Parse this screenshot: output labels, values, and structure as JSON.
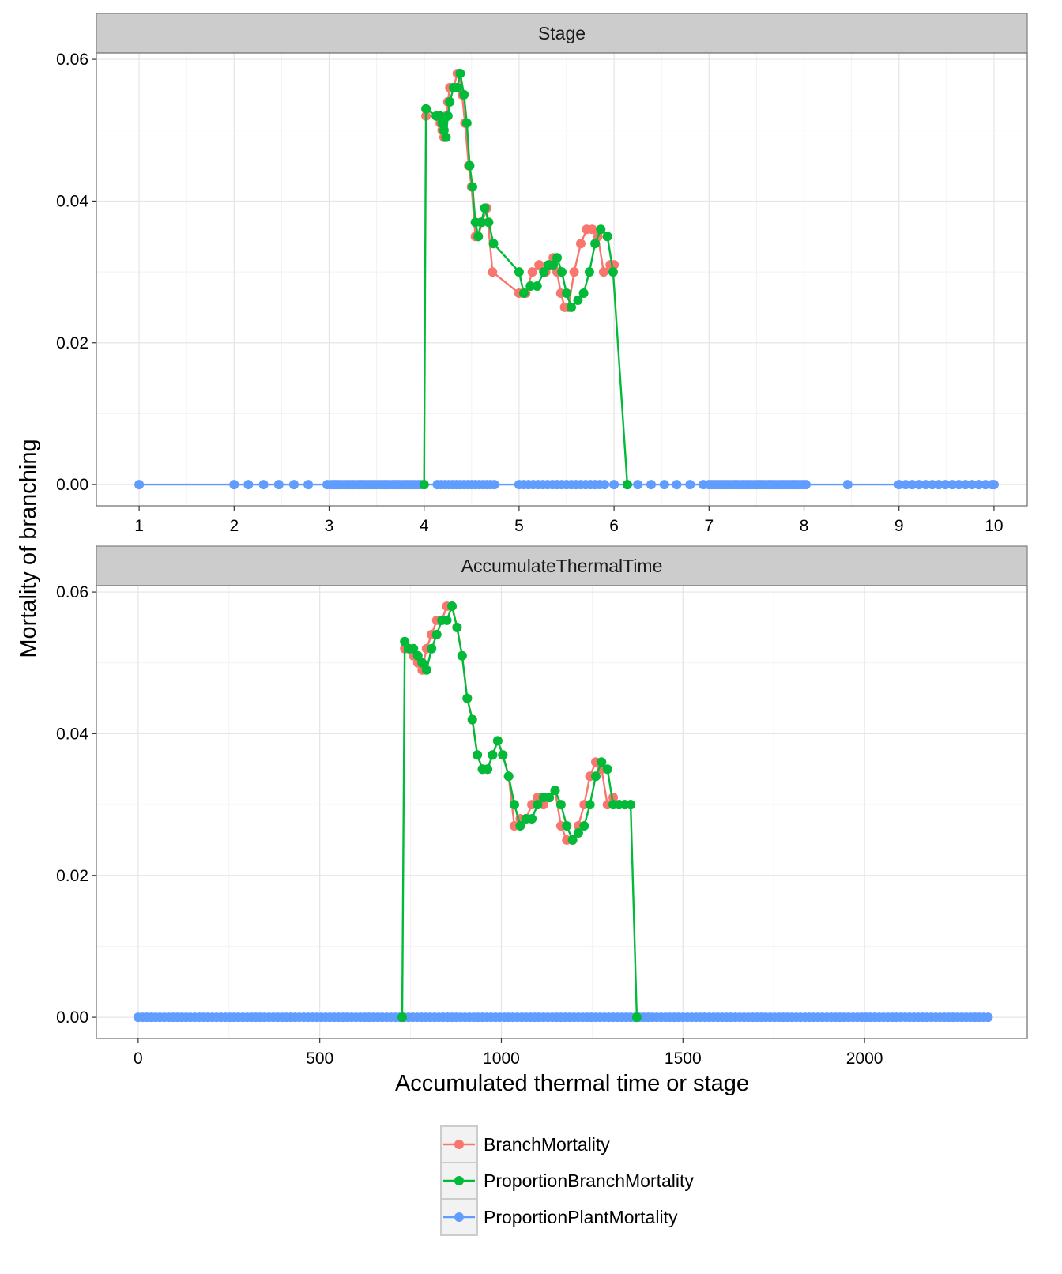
{
  "chart_data": {
    "type": "line",
    "ylabel": "Mortality of branching",
    "xlabel": "Accumulated thermal time or stage",
    "legend": {
      "placement": "bottom",
      "entries": [
        "BranchMortality",
        "ProportionBranchMortality",
        "ProportionPlantMortality"
      ]
    },
    "colors": {
      "BranchMortality": "#F8766D",
      "ProportionBranchMortality": "#00BA38",
      "ProportionPlantMortality": "#619CFF"
    },
    "panels": [
      {
        "strip": "Stage",
        "xlim": [
          0.55,
          10.35
        ],
        "ylim": [
          -0.003,
          0.0609
        ],
        "xticks": [
          1,
          2,
          3,
          4,
          5,
          6,
          7,
          8,
          9,
          10
        ],
        "yticks": [
          0.0,
          0.02,
          0.04,
          0.06
        ],
        "ytick_labels": [
          "0.00",
          "0.02",
          "0.04",
          "0.06"
        ],
        "series": [
          {
            "name": "BranchMortality",
            "x": [
              4.02,
              4.13,
              4.17,
              4.19,
              4.21,
              4.23,
              4.25,
              4.27,
              4.31,
              4.35,
              4.37,
              4.4,
              4.43,
              4.47,
              4.5,
              4.54,
              4.57,
              4.61,
              4.66,
              4.72,
              5.0,
              5.07,
              5.14,
              5.21,
              5.28,
              5.33,
              5.36,
              5.4,
              5.44,
              5.48,
              5.52,
              5.58,
              5.65,
              5.71,
              5.77,
              5.83,
              5.89,
              5.96,
              6.0
            ],
            "y": [
              0.052,
              0.052,
              0.051,
              0.05,
              0.049,
              0.052,
              0.054,
              0.056,
              0.056,
              0.058,
              0.058,
              0.055,
              0.051,
              0.045,
              0.042,
              0.035,
              0.035,
              0.037,
              0.039,
              0.03,
              0.027,
              0.027,
              0.03,
              0.031,
              0.03,
              0.031,
              0.032,
              0.03,
              0.027,
              0.025,
              0.025,
              0.03,
              0.034,
              0.036,
              0.036,
              0.035,
              0.03,
              0.031,
              0.031
            ]
          },
          {
            "name": "ProportionBranchMortality",
            "x": [
              4.0,
              4.02,
              4.13,
              4.17,
              4.19,
              4.21,
              4.23,
              4.25,
              4.27,
              4.31,
              4.35,
              4.38,
              4.42,
              4.45,
              4.48,
              4.51,
              4.54,
              4.57,
              4.6,
              4.64,
              4.68,
              4.73,
              5.0,
              5.05,
              5.12,
              5.19,
              5.26,
              5.31,
              5.36,
              5.4,
              5.45,
              5.5,
              5.55,
              5.62,
              5.68,
              5.74,
              5.8,
              5.86,
              5.93,
              5.99,
              6.14
            ],
            "y": [
              0.0,
              0.053,
              0.052,
              0.052,
              0.051,
              0.05,
              0.049,
              0.052,
              0.054,
              0.056,
              0.056,
              0.058,
              0.055,
              0.051,
              0.045,
              0.042,
              0.037,
              0.035,
              0.037,
              0.039,
              0.037,
              0.034,
              0.03,
              0.027,
              0.028,
              0.028,
              0.03,
              0.031,
              0.031,
              0.032,
              0.03,
              0.027,
              0.025,
              0.026,
              0.027,
              0.03,
              0.034,
              0.036,
              0.035,
              0.03,
              0.0
            ]
          },
          {
            "name": "ProportionPlantMortality",
            "x": [
              1.0,
              2.0,
              2.15,
              2.31,
              2.47,
              2.63,
              2.78,
              2.98,
              3.02,
              3.05,
              3.07,
              3.1,
              3.13,
              3.16,
              3.19,
              3.22,
              3.25,
              3.28,
              3.31,
              3.34,
              3.37,
              3.4,
              3.43,
              3.46,
              3.49,
              3.52,
              3.55,
              3.58,
              3.61,
              3.64,
              3.67,
              3.7,
              3.73,
              3.76,
              3.79,
              3.82,
              3.85,
              3.88,
              3.91,
              3.94,
              3.97,
              4.0,
              4.14,
              4.18,
              4.22,
              4.26,
              4.3,
              4.34,
              4.38,
              4.42,
              4.46,
              4.5,
              4.54,
              4.58,
              4.62,
              4.66,
              4.7,
              4.74,
              5.0,
              5.05,
              5.1,
              5.15,
              5.2,
              5.25,
              5.3,
              5.35,
              5.4,
              5.45,
              5.5,
              5.55,
              5.6,
              5.65,
              5.7,
              5.75,
              5.8,
              5.85,
              5.9,
              6.0,
              6.14,
              6.25,
              6.39,
              6.53,
              6.66,
              6.8,
              6.94,
              7.0,
              7.03,
              7.06,
              7.09,
              7.12,
              7.15,
              7.18,
              7.21,
              7.24,
              7.27,
              7.3,
              7.33,
              7.36,
              7.39,
              7.42,
              7.45,
              7.48,
              7.51,
              7.54,
              7.57,
              7.6,
              7.63,
              7.66,
              7.69,
              7.72,
              7.75,
              7.78,
              7.81,
              7.84,
              7.87,
              7.9,
              7.93,
              7.96,
              7.99,
              8.02,
              8.46,
              9.0,
              9.07,
              9.14,
              9.21,
              9.28,
              9.35,
              9.42,
              9.49,
              9.56,
              9.63,
              9.7,
              9.77,
              9.84,
              9.91,
              9.98,
              10.0
            ],
            "y": "all 0"
          }
        ]
      },
      {
        "strip": "AccumulateThermalTime",
        "xlim": [
          -115,
          2448
        ],
        "ylim": [
          -0.003,
          0.0609
        ],
        "xticks": [
          0,
          500,
          1000,
          1500,
          2000
        ],
        "yticks": [
          0.0,
          0.02,
          0.04,
          0.06
        ],
        "ytick_labels": [
          "0.00",
          "0.02",
          "0.04",
          "0.06"
        ],
        "series": [
          {
            "name": "BranchMortality",
            "x": [
              734,
              746,
              758,
              770,
              782,
              794,
              808,
              822,
              836,
              850,
              864,
              878,
              892,
              906,
              920,
              934,
              948,
              962,
              976,
              990,
              1004,
              1020,
              1036,
              1052,
              1068,
              1084,
              1100,
              1116,
              1132,
              1148,
              1164,
              1180,
              1196,
              1212,
              1228,
              1244,
              1260,
              1276,
              1292,
              1308,
              1324,
              1340,
              1356
            ],
            "y": [
              0.052,
              0.052,
              0.051,
              0.05,
              0.049,
              0.052,
              0.054,
              0.056,
              0.056,
              0.058,
              0.058,
              0.055,
              0.051,
              0.045,
              0.042,
              0.037,
              0.035,
              0.035,
              0.037,
              0.039,
              0.037,
              0.034,
              0.027,
              0.028,
              0.028,
              0.03,
              0.031,
              0.03,
              0.031,
              0.032,
              0.027,
              0.025,
              0.025,
              0.027,
              0.03,
              0.034,
              0.036,
              0.035,
              0.03,
              0.031,
              0.03,
              0.03,
              0.03
            ],
            "note": "approximate"
          },
          {
            "name": "ProportionBranchMortality",
            "x": [
              727,
              734,
              746,
              758,
              770,
              782,
              794,
              808,
              822,
              836,
              850,
              864,
              878,
              892,
              906,
              920,
              934,
              948,
              962,
              976,
              990,
              1004,
              1020,
              1036,
              1052,
              1068,
              1084,
              1100,
              1116,
              1132,
              1148,
              1164,
              1180,
              1196,
              1212,
              1228,
              1244,
              1260,
              1276,
              1292,
              1308,
              1324,
              1340,
              1356,
              1373
            ],
            "y": [
              0.0,
              0.053,
              0.052,
              0.052,
              0.051,
              0.05,
              0.049,
              0.052,
              0.054,
              0.056,
              0.056,
              0.058,
              0.055,
              0.051,
              0.045,
              0.042,
              0.037,
              0.035,
              0.035,
              0.037,
              0.039,
              0.037,
              0.034,
              0.03,
              0.027,
              0.028,
              0.028,
              0.03,
              0.031,
              0.031,
              0.032,
              0.03,
              0.027,
              0.025,
              0.026,
              0.027,
              0.03,
              0.034,
              0.036,
              0.035,
              0.03,
              0.03,
              0.03,
              0.03,
              0.0
            ],
            "note": "approximate"
          },
          {
            "name": "ProportionPlantMortality",
            "x_range": [
              0,
              2340
            ],
            "x_step": 12,
            "y": "all 0"
          }
        ]
      }
    ]
  }
}
